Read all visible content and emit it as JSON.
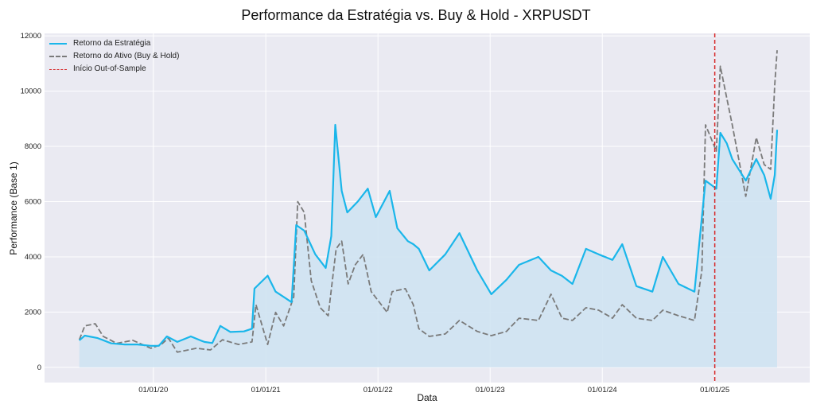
{
  "chart_data": {
    "type": "line",
    "title": "Performance da Estratégia vs. Buy & Hold - XRPUSDT",
    "xlabel": "Data",
    "ylabel": "Performance (Base 1)",
    "xlim": [
      "2019-01-12",
      "2025-11-06"
    ],
    "ylim": [
      -550,
      12090
    ],
    "yticks": [
      0,
      2000,
      4000,
      6000,
      8000,
      10000,
      12000
    ],
    "xticks": [
      {
        "date": "2020-01-01",
        "label": "01/01/20"
      },
      {
        "date": "2021-01-01",
        "label": "01/01/21"
      },
      {
        "date": "2022-01-01",
        "label": "01/01/22"
      },
      {
        "date": "2023-01-01",
        "label": "01/01/23"
      },
      {
        "date": "2024-01-01",
        "label": "01/01/24"
      },
      {
        "date": "2025-01-01",
        "label": "01/01/25"
      }
    ],
    "grid": true,
    "legend_position": "top-left",
    "background": "#eaeaf2",
    "series": [
      {
        "name": "Retorno da Estratégia",
        "color": "#1ab6ea",
        "style": "solid",
        "filled": true,
        "fill_color": "#cfe3f2",
        "points": [
          [
            "2019-05-05",
            980
          ],
          [
            "2019-05-23",
            1150
          ],
          [
            "2019-07-04",
            1060
          ],
          [
            "2019-08-17",
            870
          ],
          [
            "2019-09-30",
            830
          ],
          [
            "2019-11-10",
            830
          ],
          [
            "2019-12-24",
            780
          ],
          [
            "2020-01-19",
            780
          ],
          [
            "2020-02-14",
            1120
          ],
          [
            "2020-03-19",
            920
          ],
          [
            "2020-05-02",
            1120
          ],
          [
            "2020-06-15",
            920
          ],
          [
            "2020-07-11",
            880
          ],
          [
            "2020-08-06",
            1500
          ],
          [
            "2020-09-08",
            1280
          ],
          [
            "2020-10-22",
            1300
          ],
          [
            "2020-11-17",
            1400
          ],
          [
            "2020-11-25",
            2850
          ],
          [
            "2021-01-07",
            3320
          ],
          [
            "2021-02-02",
            2740
          ],
          [
            "2021-02-28",
            2550
          ],
          [
            "2021-03-26",
            2360
          ],
          [
            "2021-04-10",
            5150
          ],
          [
            "2021-05-06",
            4950
          ],
          [
            "2021-06-11",
            4090
          ],
          [
            "2021-07-15",
            3600
          ],
          [
            "2021-08-02",
            4750
          ],
          [
            "2021-08-15",
            8780
          ],
          [
            "2021-09-05",
            6390
          ],
          [
            "2021-09-23",
            5610
          ],
          [
            "2021-10-27",
            6000
          ],
          [
            "2021-11-29",
            6470
          ],
          [
            "2021-12-25",
            5440
          ],
          [
            "2022-02-08",
            6390
          ],
          [
            "2022-03-05",
            5040
          ],
          [
            "2022-04-08",
            4570
          ],
          [
            "2022-04-26",
            4460
          ],
          [
            "2022-05-14",
            4290
          ],
          [
            "2022-06-17",
            3510
          ],
          [
            "2022-08-08",
            4090
          ],
          [
            "2022-09-23",
            4860
          ],
          [
            "2022-11-20",
            3510
          ],
          [
            "2023-01-05",
            2650
          ],
          [
            "2023-02-23",
            3170
          ],
          [
            "2023-04-05",
            3710
          ],
          [
            "2023-06-07",
            4000
          ],
          [
            "2023-07-18",
            3510
          ],
          [
            "2023-08-23",
            3310
          ],
          [
            "2023-09-26",
            3020
          ],
          [
            "2023-11-09",
            4290
          ],
          [
            "2023-12-20",
            4090
          ],
          [
            "2024-02-03",
            3890
          ],
          [
            "2024-03-06",
            4460
          ],
          [
            "2024-04-21",
            2940
          ],
          [
            "2024-06-12",
            2740
          ],
          [
            "2024-07-16",
            4000
          ],
          [
            "2024-09-05",
            3020
          ],
          [
            "2024-10-27",
            2740
          ],
          [
            "2024-11-20",
            5440
          ],
          [
            "2024-12-02",
            6760
          ],
          [
            "2025-01-06",
            6470
          ],
          [
            "2025-01-19",
            8490
          ],
          [
            "2025-02-09",
            8110
          ],
          [
            "2025-02-27",
            7540
          ],
          [
            "2025-04-12",
            6760
          ],
          [
            "2025-05-16",
            7540
          ],
          [
            "2025-06-11",
            6960
          ],
          [
            "2025-07-02",
            6100
          ],
          [
            "2025-07-15",
            6960
          ],
          [
            "2025-07-23",
            8600
          ]
        ]
      },
      {
        "name": "Retorno do Ativo (Buy & Hold)",
        "color": "#7a7a7a",
        "style": "dashed",
        "filled": false,
        "points": [
          [
            "2019-05-05",
            1000
          ],
          [
            "2019-05-23",
            1500
          ],
          [
            "2019-06-26",
            1580
          ],
          [
            "2019-07-22",
            1120
          ],
          [
            "2019-09-04",
            870
          ],
          [
            "2019-10-26",
            980
          ],
          [
            "2019-12-24",
            690
          ],
          [
            "2020-01-27",
            830
          ],
          [
            "2020-02-19",
            1060
          ],
          [
            "2020-03-19",
            550
          ],
          [
            "2020-05-20",
            690
          ],
          [
            "2020-07-05",
            630
          ],
          [
            "2020-08-13",
            1000
          ],
          [
            "2020-10-04",
            830
          ],
          [
            "2020-11-17",
            920
          ],
          [
            "2020-11-30",
            2270
          ],
          [
            "2021-01-07",
            830
          ],
          [
            "2021-02-02",
            1990
          ],
          [
            "2021-02-28",
            1500
          ],
          [
            "2021-04-02",
            2550
          ],
          [
            "2021-04-15",
            6000
          ],
          [
            "2021-05-06",
            5610
          ],
          [
            "2021-05-29",
            3140
          ],
          [
            "2021-06-27",
            2160
          ],
          [
            "2021-07-23",
            1870
          ],
          [
            "2021-08-18",
            4290
          ],
          [
            "2021-09-05",
            4570
          ],
          [
            "2021-09-26",
            3020
          ],
          [
            "2021-10-19",
            3710
          ],
          [
            "2021-11-14",
            4090
          ],
          [
            "2021-12-10",
            2740
          ],
          [
            "2022-01-31",
            1990
          ],
          [
            "2022-02-16",
            2740
          ],
          [
            "2022-03-31",
            2850
          ],
          [
            "2022-04-26",
            2270
          ],
          [
            "2022-05-14",
            1400
          ],
          [
            "2022-06-17",
            1120
          ],
          [
            "2022-08-08",
            1210
          ],
          [
            "2022-09-23",
            1700
          ],
          [
            "2022-11-20",
            1300
          ],
          [
            "2023-01-05",
            1150
          ],
          [
            "2023-02-23",
            1300
          ],
          [
            "2023-04-05",
            1780
          ],
          [
            "2023-06-07",
            1700
          ],
          [
            "2023-07-18",
            2650
          ],
          [
            "2023-08-23",
            1780
          ],
          [
            "2023-09-26",
            1700
          ],
          [
            "2023-11-09",
            2160
          ],
          [
            "2023-12-20",
            2070
          ],
          [
            "2024-02-03",
            1780
          ],
          [
            "2024-03-06",
            2270
          ],
          [
            "2024-04-21",
            1780
          ],
          [
            "2024-06-12",
            1700
          ],
          [
            "2024-07-16",
            2070
          ],
          [
            "2024-09-05",
            1870
          ],
          [
            "2024-10-27",
            1700
          ],
          [
            "2024-11-20",
            3510
          ],
          [
            "2024-12-02",
            8780
          ],
          [
            "2025-01-06",
            7830
          ],
          [
            "2025-01-19",
            10900
          ],
          [
            "2025-02-09",
            9750
          ],
          [
            "2025-02-27",
            8780
          ],
          [
            "2025-04-12",
            6190
          ],
          [
            "2025-05-16",
            8320
          ],
          [
            "2025-06-11",
            7340
          ],
          [
            "2025-07-02",
            7170
          ],
          [
            "2025-07-15",
            10220
          ],
          [
            "2025-07-23",
            11480
          ]
        ]
      }
    ],
    "vlines": [
      {
        "name": "Início Out-of-Sample",
        "date": "2025-01-01",
        "color": "#d62728",
        "style": "dashed"
      }
    ]
  }
}
